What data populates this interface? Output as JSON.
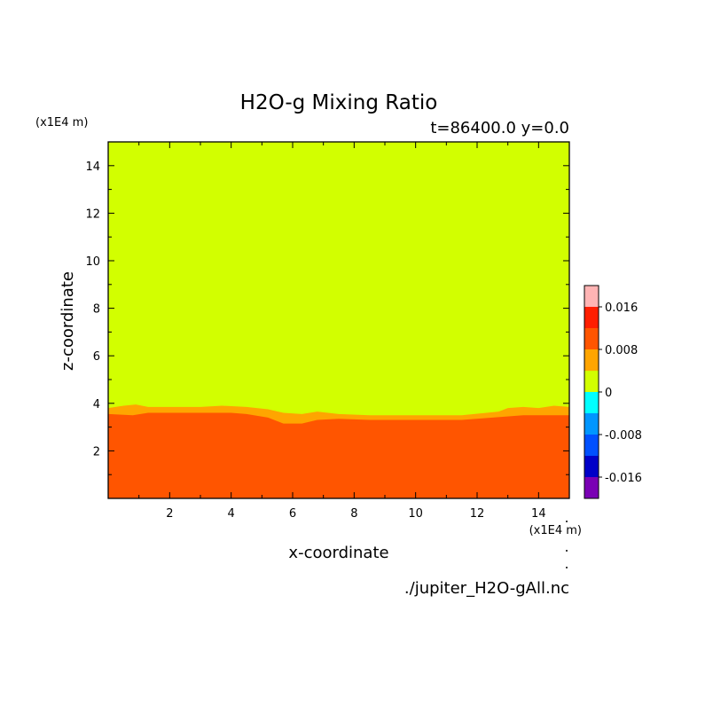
{
  "chart_data": {
    "type": "heatmap",
    "title": "H2O-g Mixing Ratio",
    "subtitle": "t=86400.0 y=0.0",
    "xlabel": "x-coordinate",
    "ylabel": "z-coordinate",
    "x_scale_label": "(x1E4 m)",
    "y_scale_label": "(x1E4 m)",
    "source_label": "./jupiter_H2O-gAll.nc",
    "xlim": [
      0,
      15
    ],
    "ylim": [
      0,
      15
    ],
    "x_ticks": [
      2,
      4,
      6,
      8,
      10,
      12,
      14
    ],
    "y_ticks": [
      2,
      4,
      6,
      8,
      10,
      12,
      14
    ],
    "x_tick_labels": [
      "2",
      "4",
      "6",
      "8",
      "10",
      "12",
      "14"
    ],
    "y_tick_labels": [
      "2",
      "4",
      "6",
      "8",
      "10",
      "12",
      "14"
    ],
    "colorbar": {
      "levels": [
        -0.02,
        -0.016,
        -0.012,
        -0.008,
        -0.004,
        0,
        0.004,
        0.008,
        0.012,
        0.016,
        0.02
      ],
      "colors": [
        "#7a00b4",
        "#0000c8",
        "#0050ff",
        "#0096ff",
        "#00ffff",
        "#d2ff00",
        "#ffa500",
        "#ff5500",
        "#ff1e00",
        "#ffb4b4"
      ],
      "tick_values": [
        -0.016,
        -0.008,
        0,
        0.008,
        0.016
      ],
      "tick_labels": [
        "-0.016",
        "-0.008",
        "0",
        "0.008",
        "0.016"
      ]
    },
    "regions": [
      {
        "name": "upper",
        "value_range": [
          0,
          0.004
        ],
        "color": "#d2ff00"
      },
      {
        "name": "transition-band",
        "value_range": [
          0.004,
          0.008
        ],
        "color": "#ffa500",
        "upper_boundary": {
          "x": [
            0,
            0.5,
            0.9,
            1.3,
            2.0,
            3.0,
            3.7,
            4.5,
            5.2,
            5.7,
            6.3,
            6.8,
            7.5,
            8.5,
            10.0,
            11.5,
            12.3,
            12.7,
            13.0,
            13.5,
            14.0,
            14.5,
            15.0
          ],
          "z": [
            3.8,
            3.9,
            3.95,
            3.85,
            3.85,
            3.85,
            3.9,
            3.85,
            3.75,
            3.6,
            3.55,
            3.65,
            3.55,
            3.5,
            3.5,
            3.5,
            3.6,
            3.65,
            3.8,
            3.85,
            3.8,
            3.9,
            3.85
          ]
        }
      },
      {
        "name": "lower",
        "value_range": [
          0.008,
          0.012
        ],
        "color": "#ff5500",
        "upper_boundary": {
          "x": [
            0,
            0.8,
            1.3,
            2.0,
            3.0,
            4.0,
            4.5,
            5.2,
            5.7,
            6.3,
            6.8,
            7.5,
            8.5,
            10.0,
            11.5,
            12.5,
            13.5,
            14.5,
            15.0
          ],
          "z": [
            3.55,
            3.5,
            3.6,
            3.6,
            3.6,
            3.6,
            3.55,
            3.4,
            3.15,
            3.15,
            3.3,
            3.35,
            3.3,
            3.3,
            3.3,
            3.4,
            3.5,
            3.5,
            3.5
          ]
        }
      }
    ]
  }
}
